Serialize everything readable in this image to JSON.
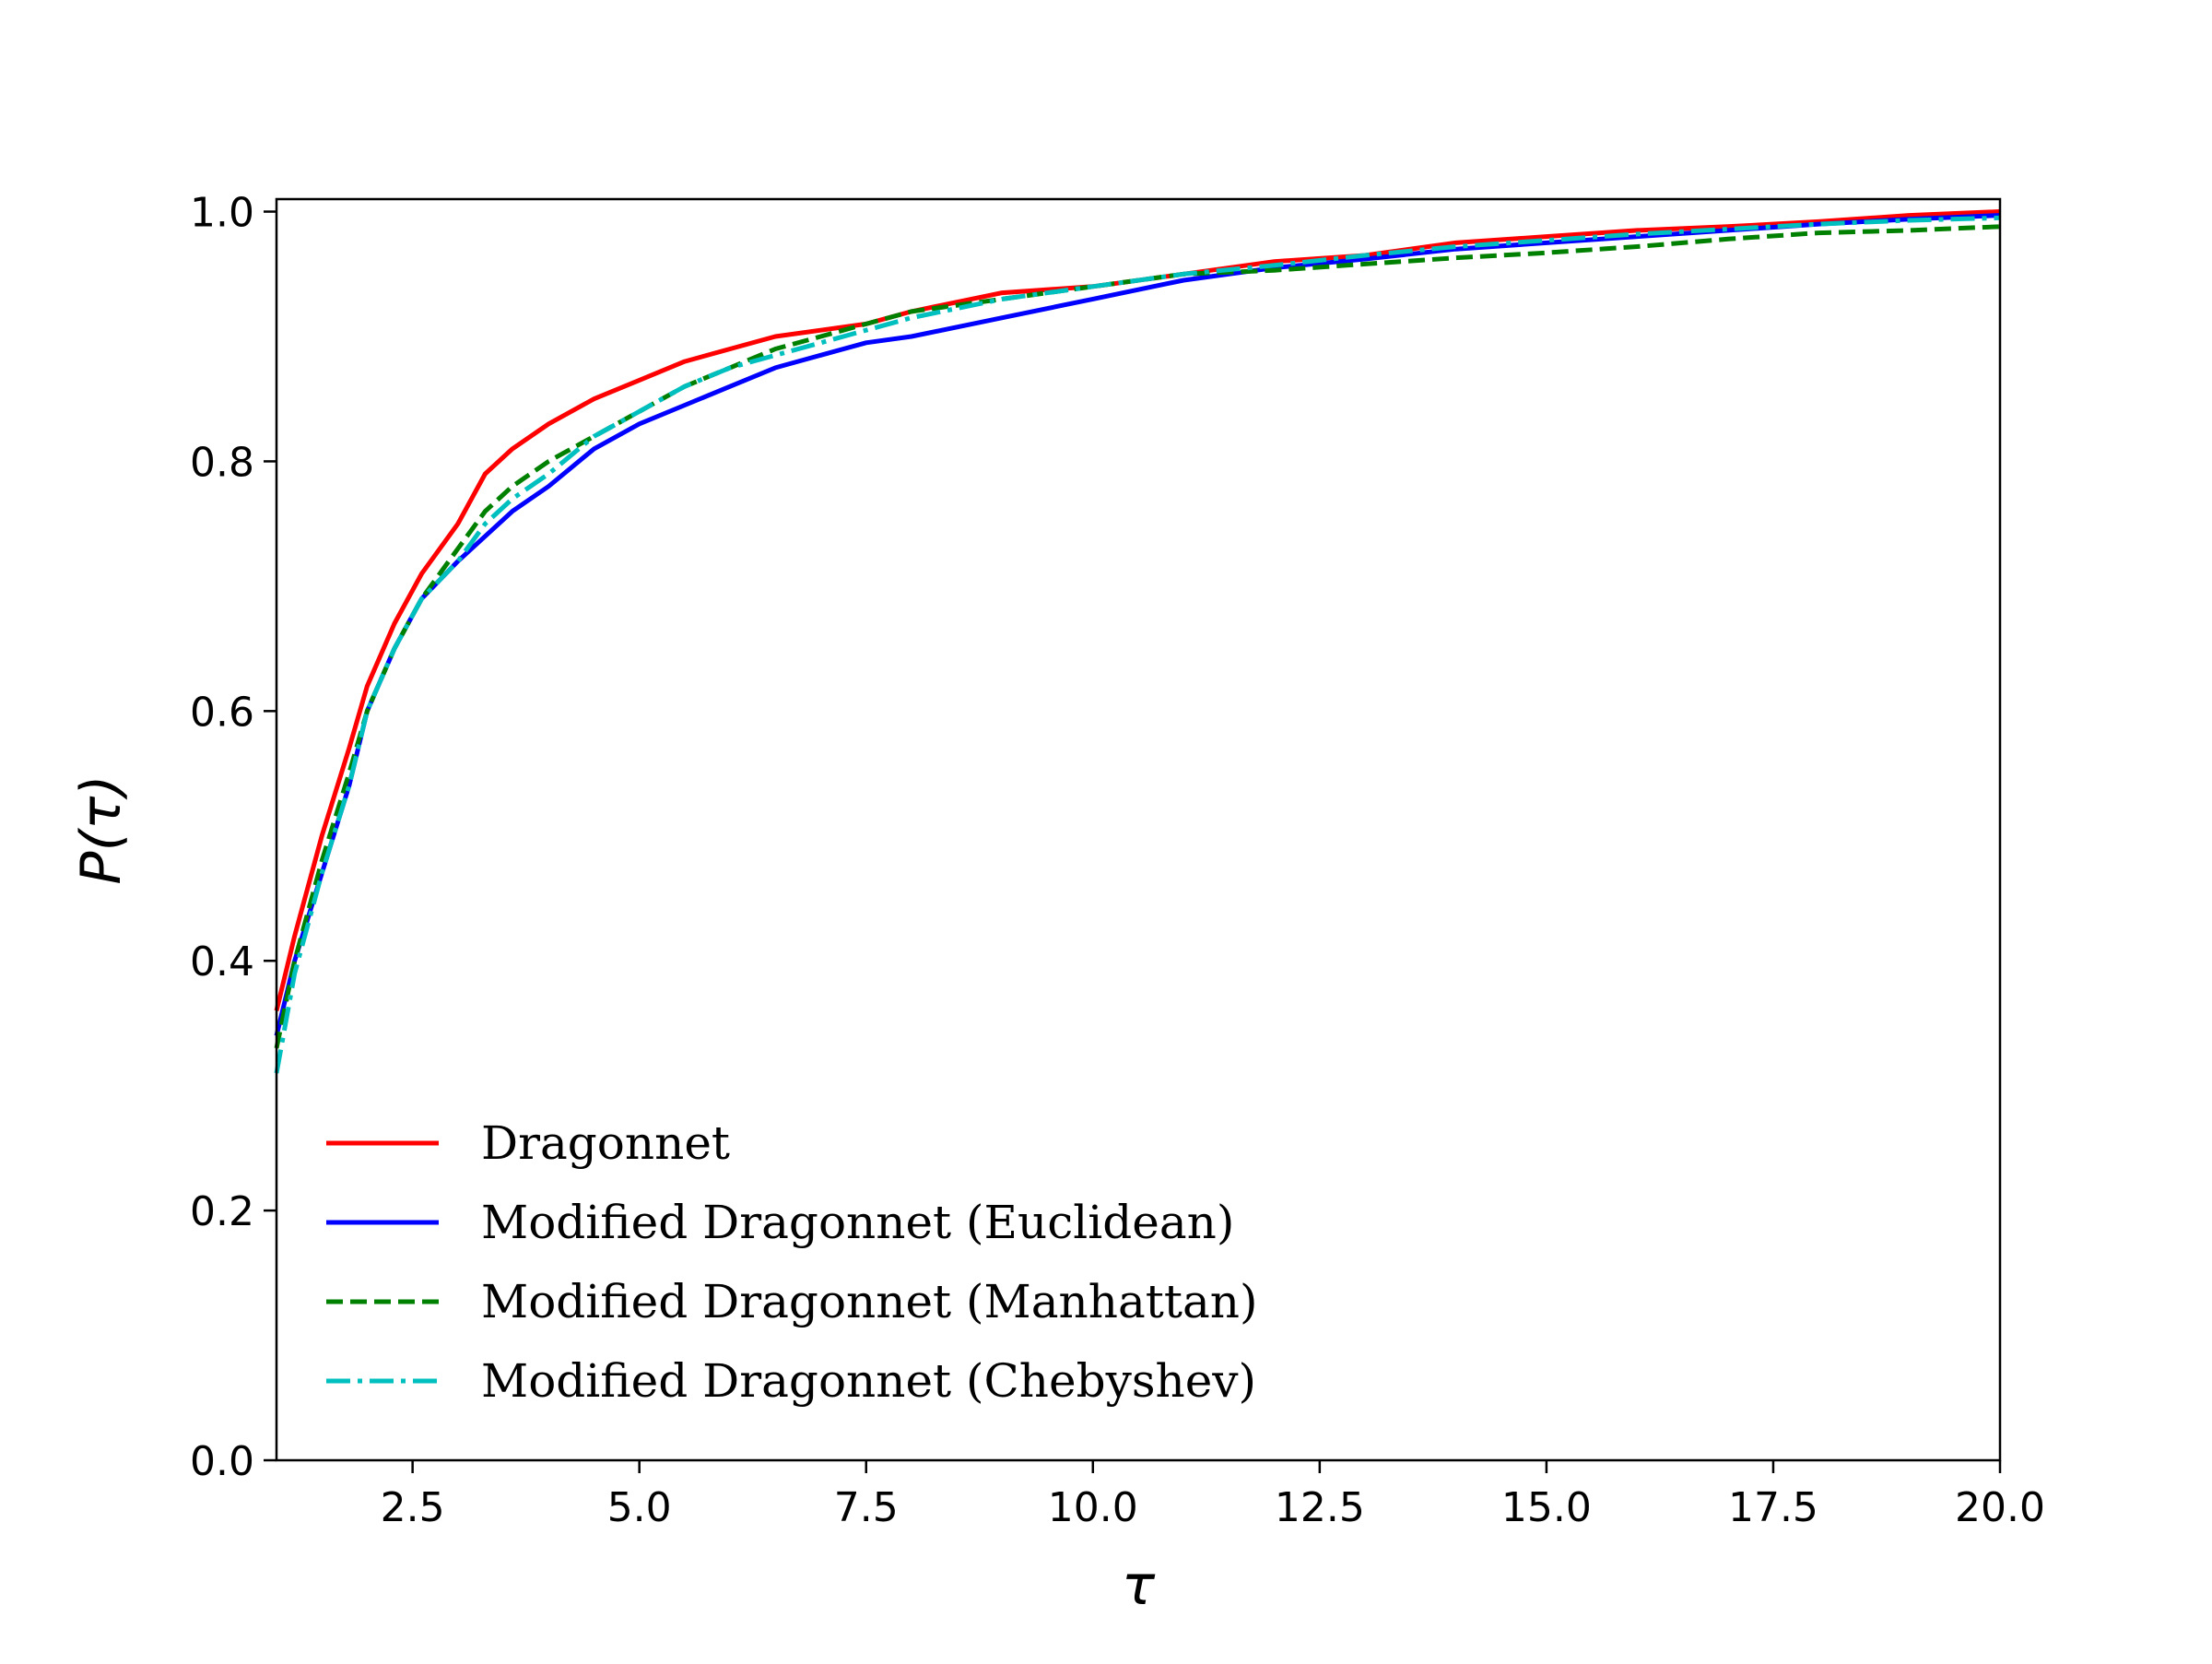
{
  "chart_data": {
    "type": "line",
    "xlabel": "τ",
    "ylabel": "P(τ)",
    "xlim": [
      1.0,
      20.0
    ],
    "ylim": [
      0.0,
      1.01
    ],
    "x_ticks": [
      2.5,
      5.0,
      7.5,
      10.0,
      12.5,
      15.0,
      17.5,
      20.0
    ],
    "x_tick_labels": [
      "2.5",
      "5.0",
      "7.5",
      "10.0",
      "12.5",
      "15.0",
      "17.5",
      "20.0"
    ],
    "y_ticks": [
      0.0,
      0.2,
      0.4,
      0.6,
      0.8,
      1.0
    ],
    "y_tick_labels": [
      "0.0",
      "0.2",
      "0.4",
      "0.6",
      "0.8",
      "1.0"
    ],
    "grid": false,
    "legend_position": "lower-left",
    "series": [
      {
        "name": "Dragonnet",
        "color": "#ff0000",
        "style": "solid",
        "x": [
          1.0,
          1.2,
          1.5,
          1.8,
          2.0,
          2.3,
          2.6,
          3.0,
          3.3,
          3.6,
          4.0,
          4.5,
          5.0,
          5.5,
          6.0,
          6.5,
          7.0,
          7.5,
          8.0,
          9.0,
          10.0,
          11.0,
          12.0,
          13.0,
          14.0,
          15.0,
          16.0,
          17.0,
          18.0,
          19.0,
          20.0
        ],
        "y": [
          0.36,
          0.42,
          0.5,
          0.57,
          0.62,
          0.67,
          0.71,
          0.75,
          0.79,
          0.81,
          0.83,
          0.85,
          0.865,
          0.88,
          0.89,
          0.9,
          0.905,
          0.91,
          0.92,
          0.935,
          0.94,
          0.95,
          0.96,
          0.965,
          0.975,
          0.98,
          0.985,
          0.988,
          0.992,
          0.997,
          1.0
        ]
      },
      {
        "name": "Modified Dragonnet (Euclidean)",
        "color": "#0000ff",
        "style": "solid",
        "x": [
          1.0,
          1.2,
          1.5,
          1.8,
          2.0,
          2.3,
          2.6,
          3.0,
          3.3,
          3.6,
          4.0,
          4.5,
          5.0,
          5.5,
          6.0,
          6.5,
          7.0,
          7.5,
          8.0,
          9.0,
          10.0,
          11.0,
          12.0,
          13.0,
          14.0,
          15.0,
          16.0,
          17.0,
          18.0,
          19.0,
          20.0
        ],
        "y": [
          0.34,
          0.4,
          0.47,
          0.54,
          0.6,
          0.65,
          0.69,
          0.72,
          0.74,
          0.76,
          0.78,
          0.81,
          0.83,
          0.845,
          0.86,
          0.875,
          0.885,
          0.895,
          0.9,
          0.915,
          0.93,
          0.945,
          0.955,
          0.962,
          0.97,
          0.975,
          0.98,
          0.985,
          0.99,
          0.994,
          0.997
        ]
      },
      {
        "name": "Modified Dragonnet (Manhattan)",
        "color": "#008000",
        "style": "dashed",
        "x": [
          1.0,
          1.2,
          1.5,
          1.8,
          2.0,
          2.3,
          2.6,
          3.0,
          3.3,
          3.6,
          4.0,
          4.5,
          5.0,
          5.5,
          6.0,
          6.5,
          7.0,
          7.5,
          8.0,
          9.0,
          10.0,
          11.0,
          12.0,
          13.0,
          14.0,
          15.0,
          16.0,
          17.0,
          18.0,
          19.0,
          20.0
        ],
        "y": [
          0.33,
          0.4,
          0.48,
          0.55,
          0.6,
          0.65,
          0.69,
          0.73,
          0.76,
          0.78,
          0.8,
          0.82,
          0.84,
          0.86,
          0.875,
          0.89,
          0.9,
          0.91,
          0.92,
          0.93,
          0.94,
          0.95,
          0.953,
          0.958,
          0.963,
          0.967,
          0.972,
          0.978,
          0.983,
          0.985,
          0.988
        ]
      },
      {
        "name": "Modified Dragonnet (Chebyshev)",
        "color": "#00bfbf",
        "style": "dashdot",
        "x": [
          1.0,
          1.2,
          1.5,
          1.8,
          2.0,
          2.3,
          2.6,
          3.0,
          3.3,
          3.6,
          4.0,
          4.5,
          5.0,
          5.5,
          6.0,
          6.5,
          7.0,
          7.5,
          8.0,
          9.0,
          10.0,
          11.0,
          12.0,
          13.0,
          14.0,
          15.0,
          16.0,
          17.0,
          18.0,
          19.0,
          20.0
        ],
        "y": [
          0.31,
          0.39,
          0.47,
          0.54,
          0.6,
          0.65,
          0.69,
          0.72,
          0.75,
          0.77,
          0.79,
          0.82,
          0.84,
          0.86,
          0.875,
          0.885,
          0.895,
          0.905,
          0.915,
          0.93,
          0.94,
          0.95,
          0.957,
          0.965,
          0.972,
          0.977,
          0.982,
          0.986,
          0.99,
          0.993,
          0.995
        ]
      }
    ]
  }
}
